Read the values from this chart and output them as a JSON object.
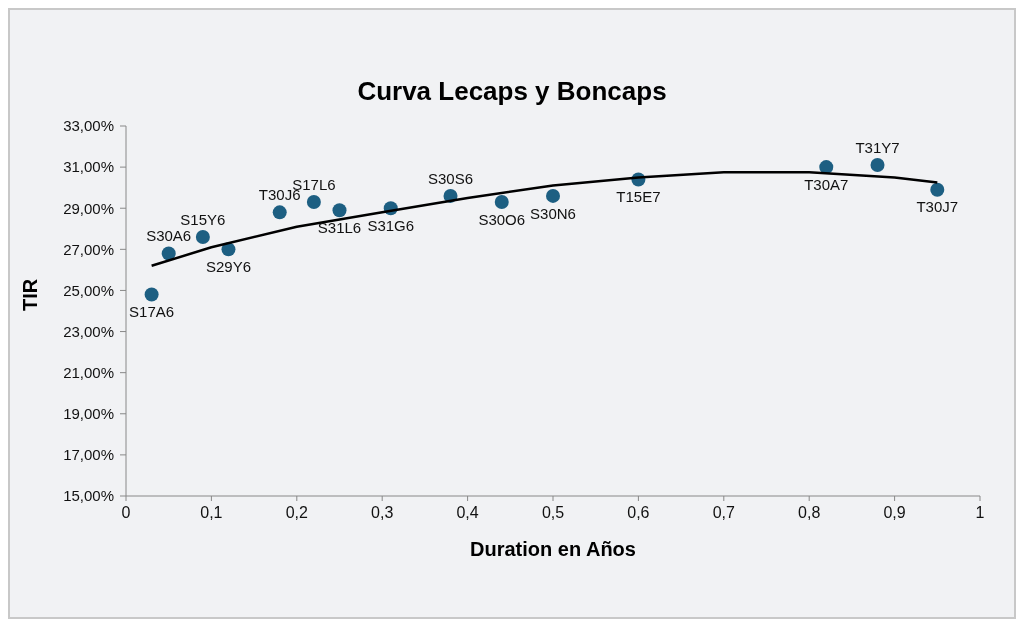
{
  "chart_data": {
    "type": "scatter",
    "title": "Curva Lecaps y Boncaps",
    "xlabel": "Duration en Años",
    "ylabel": "TIR",
    "xlim": [
      0,
      1
    ],
    "xticks": [
      0,
      {
        "value": 0.1,
        "label": "0,1"
      },
      {
        "value": 0.2,
        "label": "0,2"
      },
      {
        "value": 0.3,
        "label": "0,3"
      },
      {
        "value": 0.4,
        "label": "0,4"
      },
      {
        "value": 0.5,
        "label": "0,5"
      },
      {
        "value": 0.6,
        "label": "0,6"
      },
      {
        "value": 0.7,
        "label": "0,7"
      },
      {
        "value": 0.8,
        "label": "0,8"
      },
      {
        "value": 0.9,
        "label": "0,9"
      },
      1
    ],
    "ylim": [
      15,
      33
    ],
    "yticks": [
      {
        "value": 15,
        "label": "15,00%"
      },
      {
        "value": 17,
        "label": "17,00%"
      },
      {
        "value": 19,
        "label": "19,00%"
      },
      {
        "value": 21,
        "label": "21,00%"
      },
      {
        "value": 23,
        "label": "23,00%"
      },
      {
        "value": 25,
        "label": "25,00%"
      },
      {
        "value": 27,
        "label": "27,00%"
      },
      {
        "value": 29,
        "label": "29,00%"
      },
      {
        "value": 31,
        "label": "31,00%"
      },
      {
        "value": 33,
        "label": "33,00%"
      }
    ],
    "grid": false,
    "legend": false,
    "marker": "circle",
    "series": [
      {
        "type": "scatter",
        "color": "#1d5f82",
        "x": [
          0.03,
          0.05,
          0.09,
          0.12,
          0.18,
          0.22,
          0.25,
          0.31,
          0.38,
          0.44,
          0.5,
          0.6,
          0.82,
          0.88,
          0.95
        ],
        "values": [
          24.8,
          26.8,
          27.6,
          27.0,
          28.8,
          29.3,
          28.9,
          29.0,
          29.6,
          29.3,
          29.6,
          30.4,
          31.0,
          31.1,
          29.9
        ]
      },
      {
        "type": "line",
        "color": "#000000",
        "marker": "none",
        "line_style": "solid",
        "x": [
          0.03,
          0.1,
          0.2,
          0.3,
          0.4,
          0.5,
          0.6,
          0.7,
          0.8,
          0.9,
          0.95
        ],
        "values": [
          26.2,
          27.1,
          28.1,
          28.8,
          29.5,
          30.1,
          30.5,
          30.75,
          30.75,
          30.5,
          30.25
        ]
      }
    ],
    "annotations": [
      {
        "text": "S17A6",
        "x": 0.03,
        "y": 24.8
      },
      {
        "text": "S30A6",
        "x": 0.05,
        "y": 26.8
      },
      {
        "text": "S15Y6",
        "x": 0.09,
        "y": 27.6
      },
      {
        "text": "S29Y6",
        "x": 0.12,
        "y": 27.0
      },
      {
        "text": "T30J6",
        "x": 0.18,
        "y": 28.8
      },
      {
        "text": "S17L6",
        "x": 0.22,
        "y": 29.3
      },
      {
        "text": "S31L6",
        "x": 0.25,
        "y": 28.9
      },
      {
        "text": "S31G6",
        "x": 0.31,
        "y": 29.0
      },
      {
        "text": "S30S6",
        "x": 0.38,
        "y": 29.6
      },
      {
        "text": "S30O6",
        "x": 0.44,
        "y": 29.3
      },
      {
        "text": "S30N6",
        "x": 0.5,
        "y": 29.6
      },
      {
        "text": "T15E7",
        "x": 0.6,
        "y": 30.4
      },
      {
        "text": "T30A7",
        "x": 0.82,
        "y": 31.0
      },
      {
        "text": "T31Y7",
        "x": 0.88,
        "y": 31.1
      },
      {
        "text": "T30J7",
        "x": 0.95,
        "y": 29.9
      }
    ]
  }
}
